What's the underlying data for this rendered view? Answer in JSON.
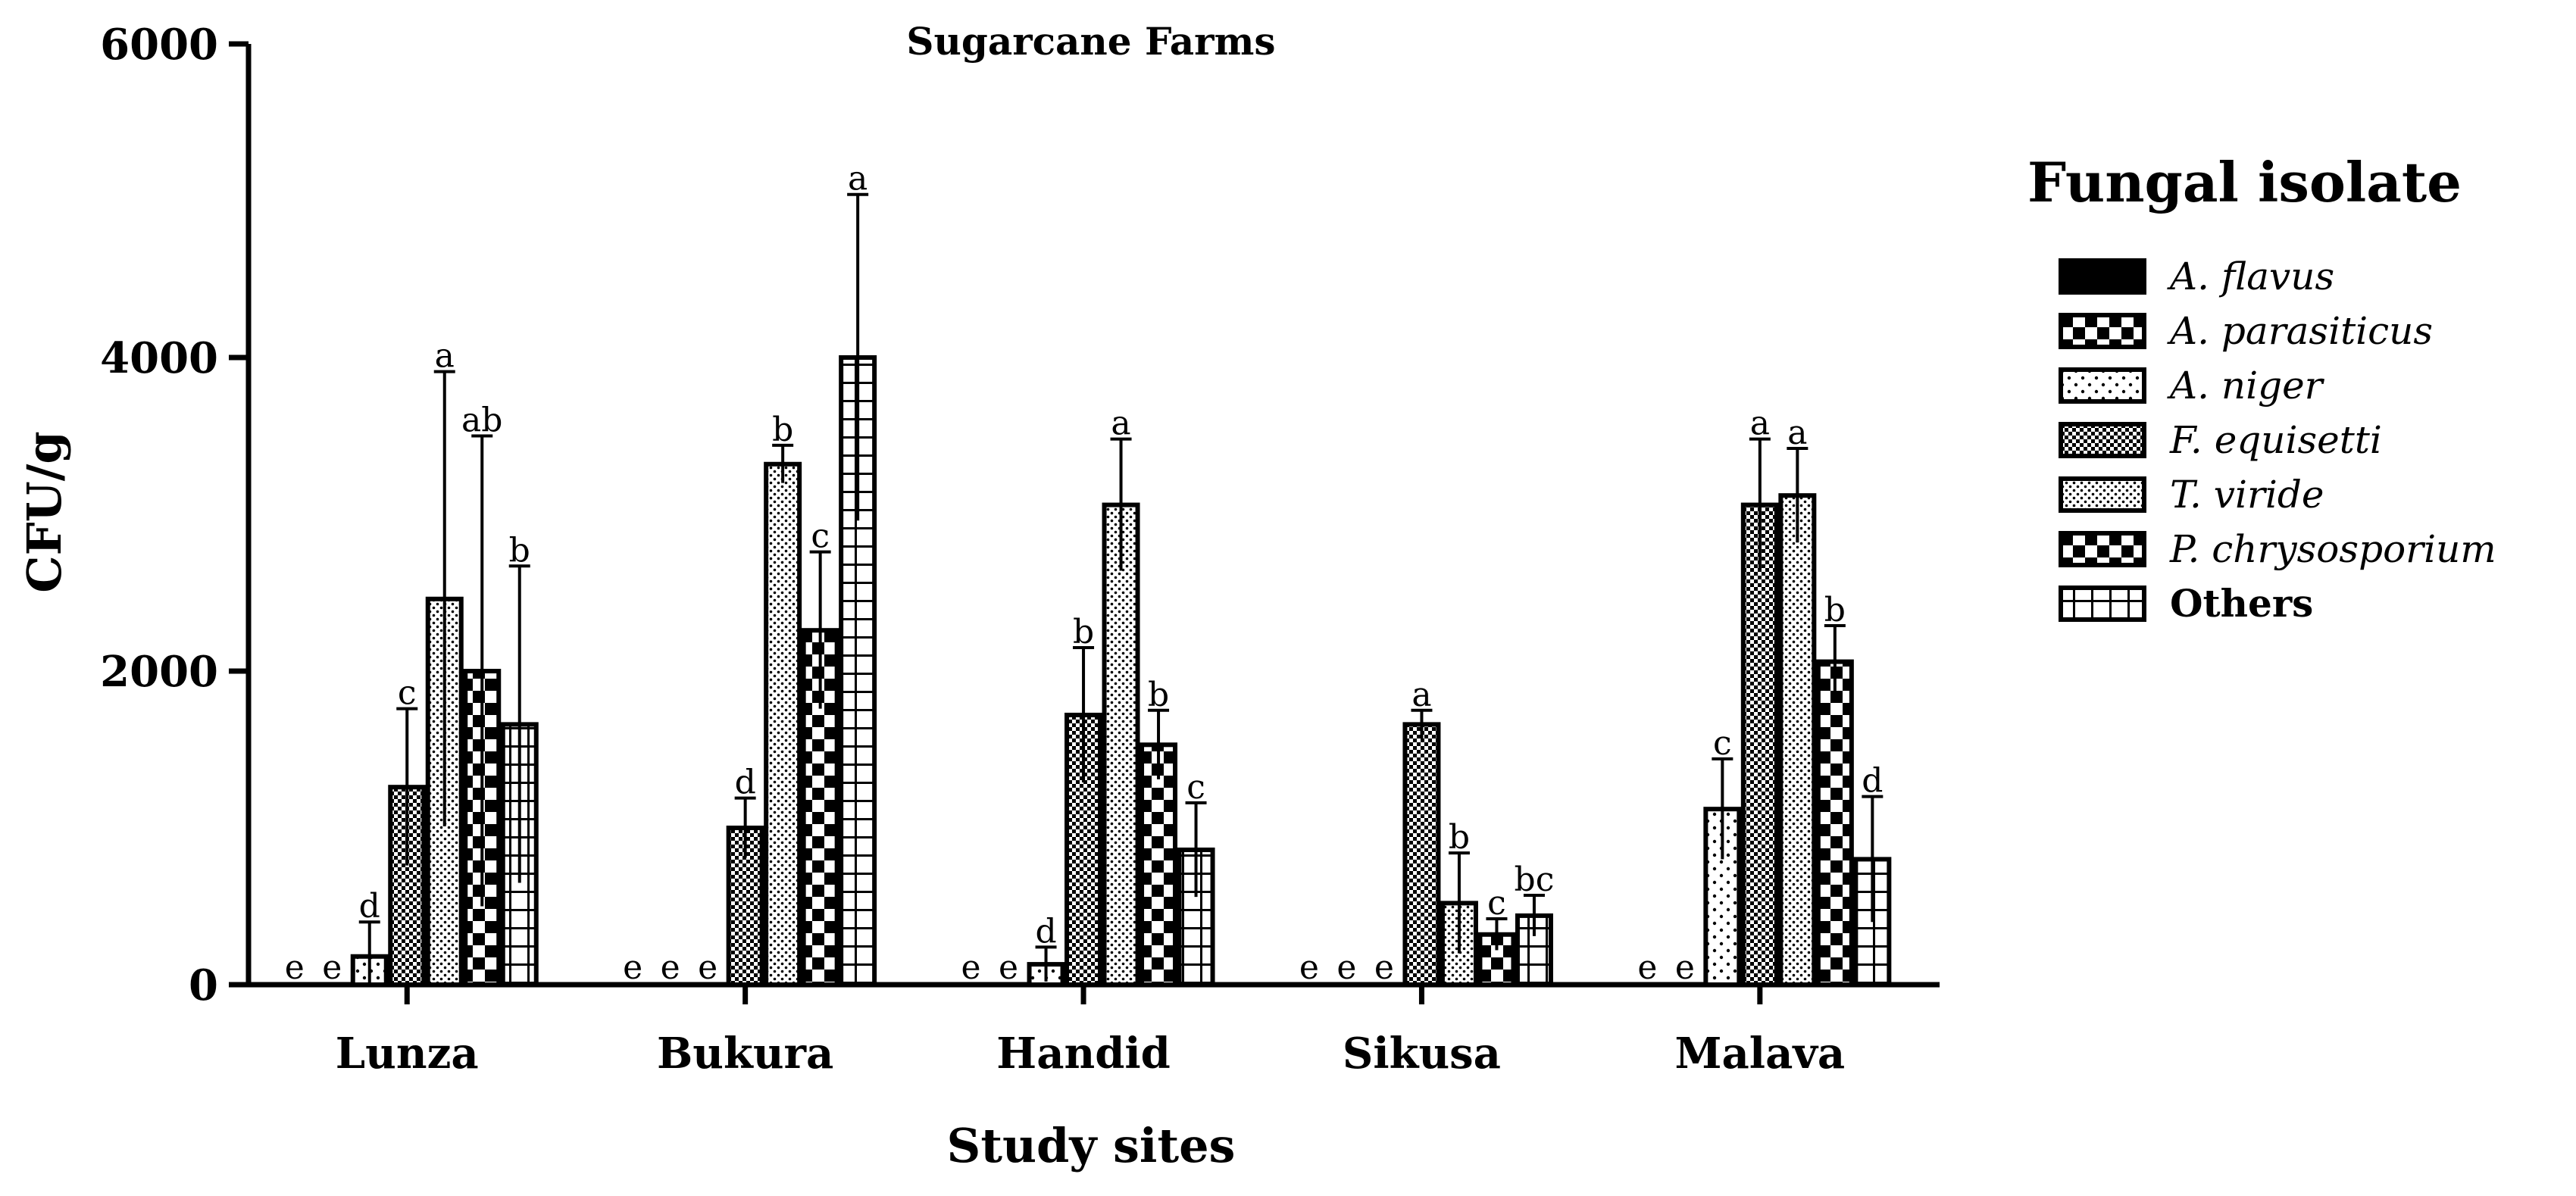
{
  "chart_data": {
    "type": "bar",
    "title": "Sugarcane Farms",
    "xlabel": "Study sites",
    "ylabel": "CFU/g",
    "ylim": [
      0,
      6000
    ],
    "yticks": [
      "0",
      "2000",
      "4000",
      "6000"
    ],
    "grid": false,
    "legend_position": "right",
    "legend_title": "Fungal isolate",
    "categories": [
      "Lunza",
      "Bukura",
      "Handid",
      "Sikusa",
      "Malava"
    ],
    "series": [
      {
        "name": "A. flavus",
        "pattern": "solid",
        "values": [
          0,
          0,
          0,
          0,
          0
        ],
        "errors": [
          0,
          0,
          0,
          0,
          0
        ],
        "letters": [
          "e",
          "e",
          "e",
          "e",
          "e"
        ]
      },
      {
        "name": "A. parasiticus",
        "pattern": "checker-large",
        "values": [
          0,
          0,
          0,
          0,
          0
        ],
        "errors": [
          0,
          0,
          0,
          0,
          0
        ],
        "letters": [
          "e",
          "e",
          "e",
          "e",
          "e"
        ]
      },
      {
        "name": "A. niger",
        "pattern": "dots-sparse",
        "values": [
          180,
          0,
          130,
          0,
          1120
        ],
        "errors": [
          220,
          0,
          110,
          0,
          320
        ],
        "letters": [
          "d",
          "e",
          "d",
          "e",
          "c"
        ]
      },
      {
        "name": "F. equisetti",
        "pattern": "checker-fine",
        "values": [
          1260,
          1000,
          1720,
          1660,
          3060
        ],
        "errors": [
          500,
          190,
          430,
          90,
          420
        ],
        "letters": [
          "c",
          "d",
          "b",
          "a",
          "a"
        ]
      },
      {
        "name": "T. viride",
        "pattern": "dots-dense",
        "values": [
          2460,
          3320,
          3060,
          520,
          3120
        ],
        "errors": [
          1450,
          120,
          420,
          320,
          300
        ],
        "letters": [
          "a",
          "b",
          "a",
          "b",
          "a"
        ]
      },
      {
        "name": "P. chrysosporium",
        "pattern": "checker-large",
        "values": [
          2000,
          2260,
          1530,
          320,
          2060
        ],
        "errors": [
          1500,
          500,
          220,
          100,
          230
        ],
        "letters": [
          "ab",
          "c",
          "b",
          "c",
          "b"
        ]
      },
      {
        "name": "Others",
        "pattern": "grid",
        "plain_label": true,
        "values": [
          1660,
          4000,
          860,
          440,
          800
        ],
        "errors": [
          1010,
          1040,
          300,
          130,
          400
        ],
        "letters": [
          "b",
          "a",
          "c",
          "bc",
          "d"
        ]
      }
    ]
  }
}
